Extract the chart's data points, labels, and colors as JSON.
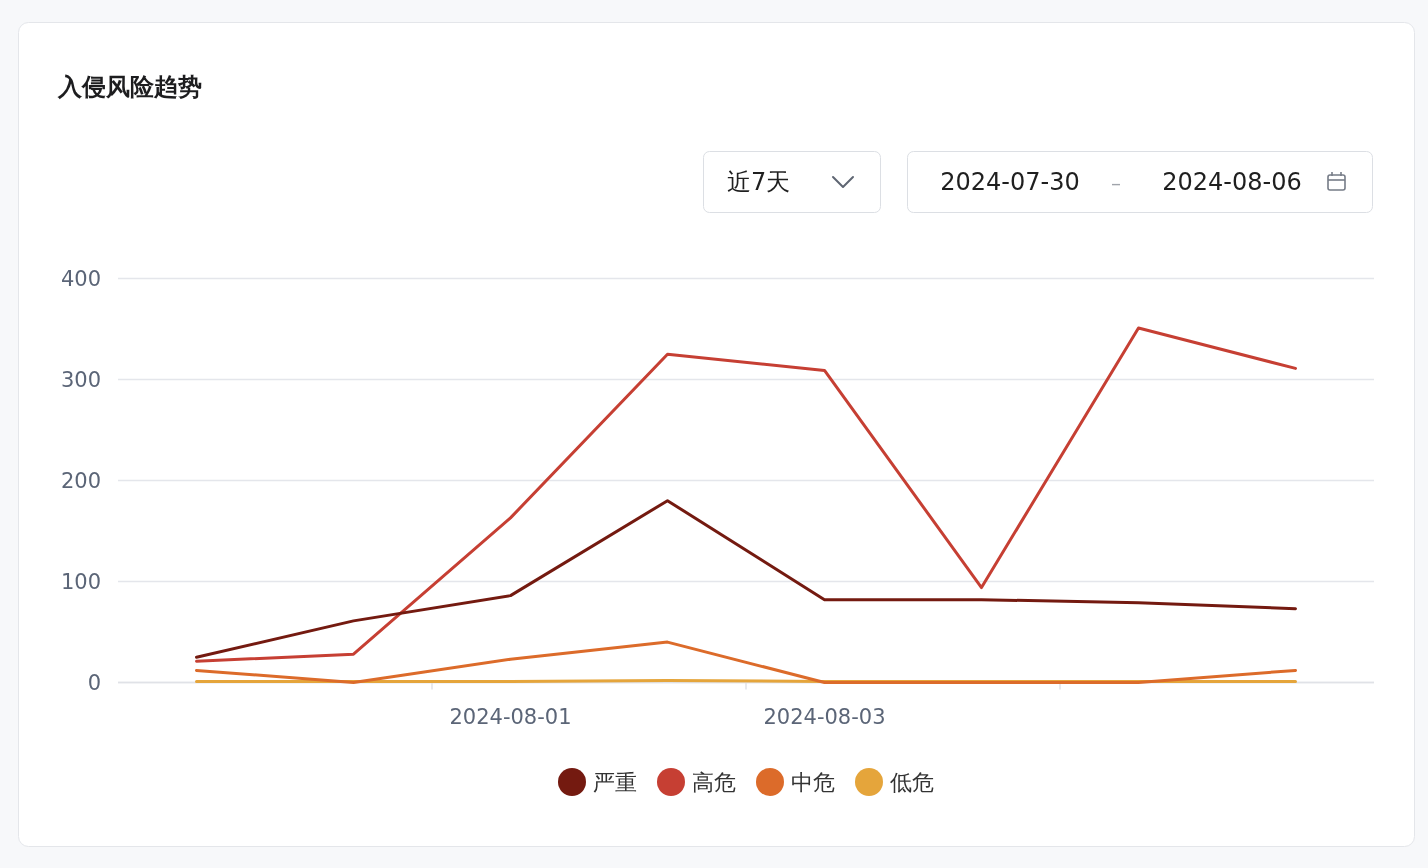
{
  "chart_data": {
    "type": "line",
    "title": "入侵风险趋势",
    "annotations": [
      "近7天",
      "2024-07-30",
      "–",
      "2024-08-06"
    ],
    "categories": [
      null,
      null,
      "2024-08-01",
      null,
      "2024-08-03",
      null,
      null,
      null
    ],
    "series": [
      {
        "name": "严重",
        "color": "#741a10",
        "values": [
          25,
          61,
          86,
          180,
          82,
          82,
          79,
          73
        ]
      },
      {
        "name": "高危",
        "color": "#c63f33",
        "values": [
          21,
          28,
          163,
          325,
          309,
          94,
          351,
          311
        ]
      },
      {
        "name": "中危",
        "color": "#dc6b2a",
        "values": [
          12,
          0,
          23,
          40,
          0,
          0,
          0,
          12
        ]
      },
      {
        "name": "低危",
        "color": "#e5a53b",
        "values": [
          1,
          1,
          1,
          2,
          1,
          1,
          1,
          1
        ]
      }
    ],
    "ylim": [
      0,
      400
    ],
    "yticks": [
      0,
      100,
      200,
      300,
      400
    ],
    "grid": "y",
    "legend": "bottom"
  }
}
